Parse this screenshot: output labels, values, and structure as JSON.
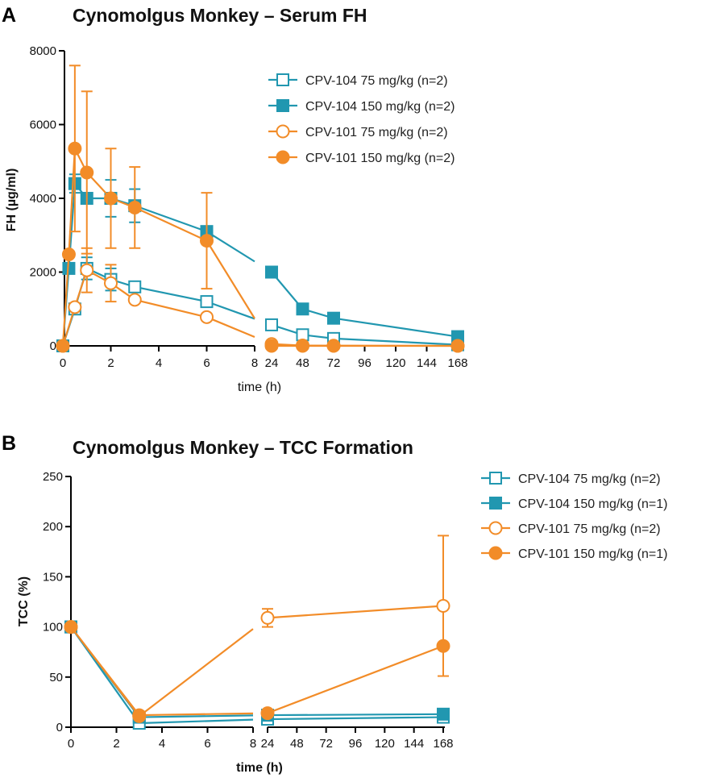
{
  "colors": {
    "teal": "#2197b0",
    "orange": "#f28c28",
    "axis": "#000000"
  },
  "chart_data": [
    {
      "panel_label": "A",
      "type": "line",
      "title": "Cynomolgus  Monkey  – Serum FH",
      "xlabel": "time (h)",
      "ylabel": "FH (µg/ml)",
      "ylim": [
        0,
        8000
      ],
      "yticks": [
        0,
        2000,
        4000,
        6000,
        8000
      ],
      "xticks_early": [
        0,
        2,
        4,
        6,
        8
      ],
      "xticks_late": [
        24,
        48,
        72,
        96,
        120,
        144,
        168
      ],
      "xlim_early": [
        0,
        8
      ],
      "xlim_late": [
        24,
        168
      ],
      "legend_position": "top-right",
      "series": [
        {
          "name": "CPV-104 75 mg/kg (n=2)",
          "color": "teal",
          "marker": "square",
          "filled": false,
          "x": [
            0,
            0.5,
            1,
            2,
            3,
            6,
            24,
            48,
            72,
            168
          ],
          "y": [
            0,
            1000,
            2100,
            1800,
            1600,
            1200,
            570,
            300,
            200,
            30
          ],
          "err": [
            0,
            0,
            300,
            300,
            0,
            0,
            0,
            0,
            0,
            0
          ]
        },
        {
          "name": "CPV-104 150 mg/kg (n=2)",
          "color": "teal",
          "marker": "square",
          "filled": true,
          "x": [
            0,
            0.25,
            0.5,
            1,
            2,
            3,
            6,
            24,
            48,
            72,
            168
          ],
          "y": [
            0,
            2100,
            4400,
            4000,
            4000,
            3800,
            3100,
            2000,
            1000,
            750,
            250
          ],
          "err": [
            0,
            0,
            250,
            0,
            500,
            450,
            0,
            0,
            0,
            0,
            0
          ]
        },
        {
          "name": "CPV-101 75 mg/kg (n=2)",
          "color": "orange",
          "marker": "circle",
          "filled": false,
          "x": [
            0,
            0.5,
            1,
            2,
            3,
            6,
            24,
            48,
            72,
            168
          ],
          "y": [
            0,
            1050,
            2050,
            1700,
            1250,
            780,
            50,
            10,
            5,
            0
          ],
          "err": [
            0,
            0,
            600,
            500,
            0,
            0,
            0,
            0,
            0,
            0
          ]
        },
        {
          "name": "CPV-101 150 mg/kg (n=2)",
          "color": "orange",
          "marker": "circle",
          "filled": true,
          "x": [
            0,
            0.25,
            0.5,
            1,
            2,
            3,
            6,
            24,
            48,
            72,
            168
          ],
          "y": [
            0,
            2480,
            5350,
            4700,
            4000,
            3750,
            2850,
            0,
            0,
            0,
            0
          ],
          "err": [
            0,
            0,
            2250,
            2200,
            1350,
            1100,
            1300,
            0,
            0,
            0,
            0
          ]
        }
      ]
    },
    {
      "panel_label": "B",
      "type": "line",
      "title": "Cynomolgus  Monkey  – TCC Formation",
      "xlabel": "time (h)",
      "ylabel": "TCC (%)",
      "ylim": [
        0,
        250
      ],
      "yticks": [
        0,
        50,
        100,
        150,
        200,
        250
      ],
      "xticks_early": [
        0,
        2,
        4,
        6,
        8
      ],
      "xticks_late": [
        24,
        48,
        72,
        96,
        120,
        144,
        168
      ],
      "xlim_early": [
        0,
        8
      ],
      "xlim_late": [
        24,
        168
      ],
      "legend_position": "right",
      "series": [
        {
          "name": "CPV-104 75 mg/kg (n=2)",
          "color": "teal",
          "marker": "square",
          "filled": false,
          "x": [
            0,
            3,
            24,
            168
          ],
          "y": [
            100,
            4,
            8,
            10
          ],
          "err": [
            0,
            0,
            0,
            0
          ]
        },
        {
          "name": "CPV-104 150 mg/kg (n=1)",
          "color": "teal",
          "marker": "square",
          "filled": true,
          "x": [
            0,
            3,
            24,
            168
          ],
          "y": [
            100,
            10,
            12,
            13
          ],
          "err": [
            0,
            0,
            0,
            0
          ]
        },
        {
          "name": "CPV-101 75 mg/kg (n=2)",
          "color": "orange",
          "marker": "circle",
          "filled": false,
          "x": [
            0,
            3,
            24,
            168
          ],
          "y": [
            100,
            11,
            109,
            121
          ],
          "err": [
            0,
            0,
            9,
            70
          ]
        },
        {
          "name": "CPV-101 150 mg/kg (n=1)",
          "color": "orange",
          "marker": "circle",
          "filled": true,
          "x": [
            0,
            3,
            24,
            168
          ],
          "y": [
            100,
            12,
            14,
            81
          ],
          "err": [
            0,
            0,
            0,
            0
          ]
        }
      ]
    }
  ]
}
